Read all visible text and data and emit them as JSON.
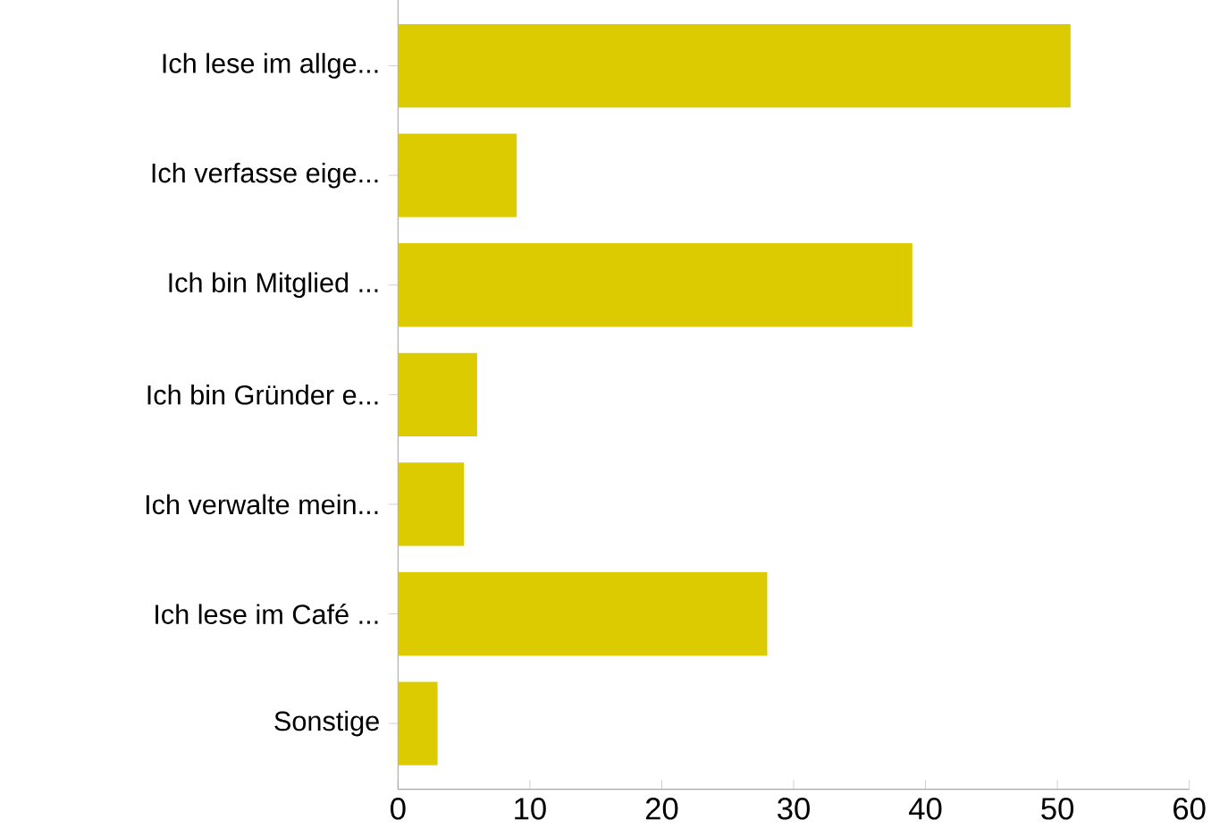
{
  "chart_data": {
    "type": "bar",
    "orientation": "horizontal",
    "categories": [
      "Ich lese im allge...",
      "Ich verfasse eige...",
      "Ich bin Mitglied ...",
      "Ich bin Gründer e...",
      "Ich verwalte mein...",
      "Ich lese im Café ...",
      "Sonstige"
    ],
    "values": [
      51,
      9,
      39,
      6,
      5,
      28,
      3
    ],
    "color": "#dccb00",
    "xlim": [
      0,
      60
    ],
    "xticks": [
      0,
      10,
      20,
      30,
      40,
      50,
      60
    ],
    "grid": false
  }
}
